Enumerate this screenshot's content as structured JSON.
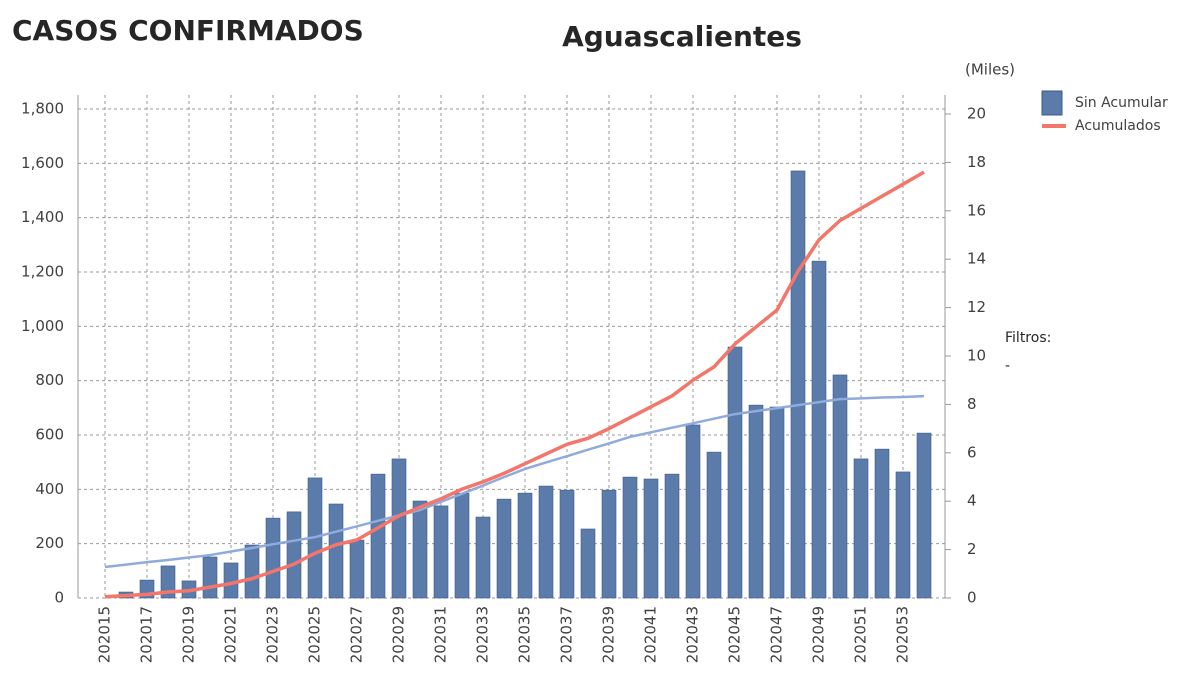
{
  "chart_data": {
    "type": "bar_line",
    "heading": "CASOS CONFIRMADOS",
    "title": "Aguascalientes",
    "y2_label": "(Miles)",
    "filters_label": "Filtros:",
    "filters_value": "-",
    "categories": [
      "202015",
      null,
      "202017",
      null,
      "202019",
      null,
      "202021",
      null,
      "202023",
      null,
      "202025",
      null,
      "202027",
      null,
      "202029",
      null,
      "202031",
      null,
      "202033",
      null,
      "202035",
      null,
      "202037",
      null,
      "202039",
      null,
      "202041",
      null,
      "202043",
      null,
      "202045",
      null,
      "202047",
      null,
      "202049",
      null,
      "202051",
      null,
      "202053",
      null
    ],
    "series": [
      {
        "name": "Sin Acumular",
        "type": "bar",
        "color": "#5b7bab",
        "values": [
          0,
          22,
          66,
          118,
          63,
          151,
          129,
          195,
          294,
          317,
          442,
          346,
          213,
          456,
          512,
          357,
          339,
          386,
          298,
          364,
          386,
          412,
          397,
          254,
          397,
          445,
          438,
          456,
          637,
          537,
          924,
          710,
          703,
          1572,
          1240,
          821,
          512,
          548,
          464,
          607
        ]
      },
      {
        "name": "Acumulados",
        "type": "line",
        "axis": "y2",
        "color": "#f4766a",
        "values": [
          0.05,
          0.1,
          0.15,
          0.25,
          0.3,
          0.45,
          0.6,
          0.8,
          1.1,
          1.4,
          1.85,
          2.2,
          2.4,
          2.9,
          3.4,
          3.75,
          4.1,
          4.5,
          4.8,
          5.15,
          5.55,
          5.95,
          6.35,
          6.6,
          7.0,
          7.45,
          7.9,
          8.35,
          9.0,
          9.55,
          10.5,
          11.2,
          11.9,
          13.5,
          14.8,
          15.6,
          16.1,
          16.6,
          17.1,
          17.6
        ]
      },
      {
        "type": "line",
        "color": "#8faadc",
        "values": [
          114,
          123,
          132,
          140,
          149,
          158,
          171,
          184,
          198,
          211,
          224,
          244,
          264,
          284,
          304,
          324,
          354,
          384,
          414,
          445,
          475,
          499,
          522,
          546,
          569,
          593,
          610,
          627,
          643,
          660,
          677,
          688,
          699,
          710,
          721,
          732,
          735,
          738,
          740,
          743
        ]
      }
    ],
    "ylim": [
      0,
      1800
    ],
    "yticks": [
      0,
      200,
      400,
      600,
      800,
      {
        "value": 1000,
        "label": "1,000"
      },
      {
        "value": 1200,
        "label": "1,200"
      },
      {
        "value": 1400,
        "label": "1,400"
      },
      {
        "value": 1600,
        "label": "1,600"
      },
      {
        "value": 1800,
        "label": "1,800"
      }
    ],
    "y2lim": [
      0,
      20
    ],
    "y2ticks": [
      0,
      2,
      4,
      6,
      8,
      10,
      12,
      14,
      16,
      18,
      20
    ],
    "grid": true,
    "legend": "right"
  }
}
